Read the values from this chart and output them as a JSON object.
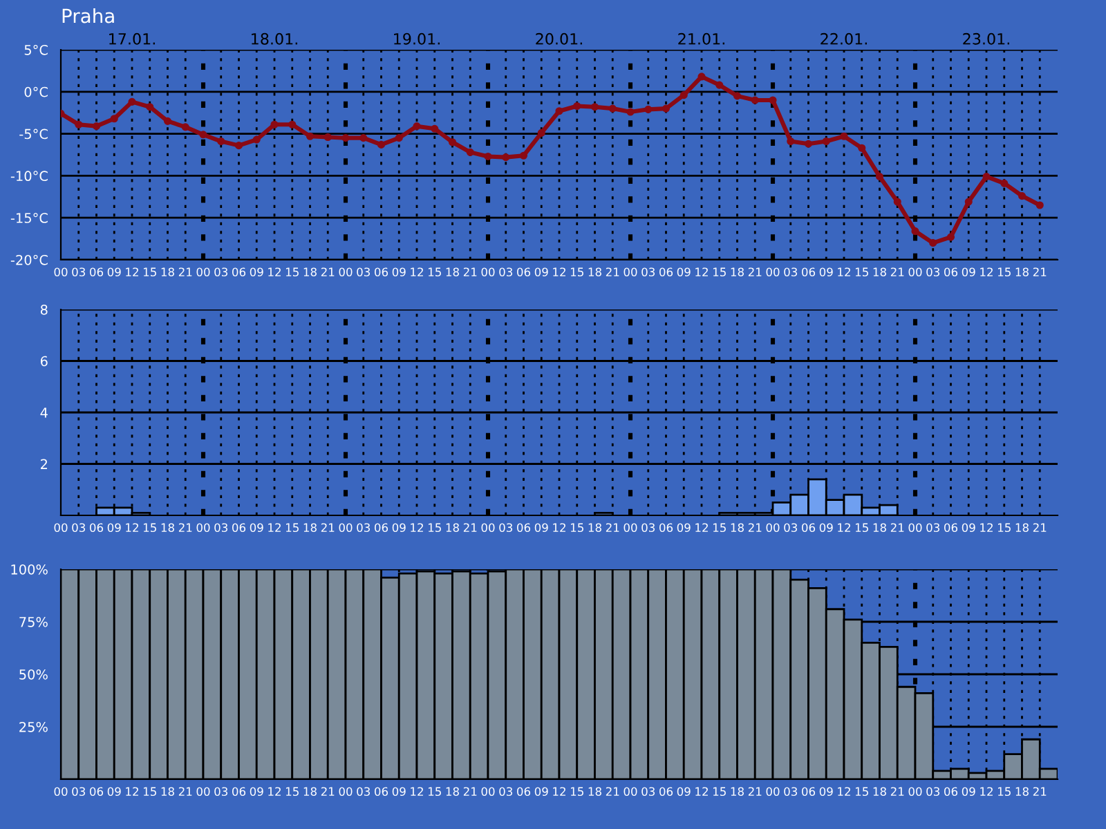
{
  "chart_data": [
    {
      "type": "line",
      "title": "Praha",
      "annotations": [
        "17.01.",
        "18.01.",
        "19.01.",
        "20.01.",
        "21.01.",
        "22.01.",
        "23.01."
      ],
      "categories": [
        "00",
        "03",
        "06",
        "09",
        "12",
        "15",
        "18",
        "21",
        "00",
        "03",
        "06",
        "09",
        "12",
        "15",
        "18",
        "21",
        "00",
        "03",
        "06",
        "09",
        "12",
        "15",
        "18",
        "21",
        "00",
        "03",
        "06",
        "09",
        "12",
        "15",
        "18",
        "21",
        "00",
        "03",
        "06",
        "09",
        "12",
        "15",
        "18",
        "21",
        "00",
        "03",
        "06",
        "09",
        "12",
        "15",
        "18",
        "21",
        "00",
        "03",
        "06",
        "09",
        "12",
        "15",
        "18",
        "21"
      ],
      "series": [
        {
          "color": "#8b0a14",
          "values": [
            -2.6,
            -3.9,
            -4.1,
            -3.2,
            -1.2,
            -1.8,
            -3.5,
            -4.2,
            -5.1,
            -5.9,
            -6.4,
            -5.7,
            -3.9,
            -3.9,
            -5.3,
            -5.4,
            -5.5,
            -5.5,
            -6.3,
            -5.5,
            -4.1,
            -4.4,
            -6.0,
            -7.2,
            -7.7,
            -7.8,
            -7.6,
            -4.9,
            -2.3,
            -1.7,
            -1.8,
            -2.0,
            -2.4,
            -2.1,
            -2.0,
            -0.4,
            1.8,
            0.8,
            -0.5,
            -1.0,
            -1.0,
            -5.9,
            -6.2,
            -5.9,
            -5.3,
            -6.7,
            -10.1,
            -13.1,
            -16.6,
            -18.0,
            -17.3,
            -13.1,
            -10.1,
            -10.9,
            -12.4,
            -13.5
          ]
        }
      ],
      "ylim": [
        -20,
        5
      ],
      "yticks": [
        {
          "value": 5,
          "label": "5°C"
        },
        {
          "value": 0,
          "label": "0°C"
        },
        {
          "value": -5,
          "label": "-5°C"
        },
        {
          "value": -10,
          "label": "-10°C"
        },
        {
          "value": -15,
          "label": "-15°C"
        },
        {
          "value": -20,
          "label": "-20°C"
        }
      ],
      "grid": true,
      "marker": "circle",
      "line_style": "solid"
    },
    {
      "type": "bar",
      "categories": [
        "00",
        "03",
        "06",
        "09",
        "12",
        "15",
        "18",
        "21",
        "00",
        "03",
        "06",
        "09",
        "12",
        "15",
        "18",
        "21",
        "00",
        "03",
        "06",
        "09",
        "12",
        "15",
        "18",
        "21",
        "00",
        "03",
        "06",
        "09",
        "12",
        "15",
        "18",
        "21",
        "00",
        "03",
        "06",
        "09",
        "12",
        "15",
        "18",
        "21",
        "00",
        "03",
        "06",
        "09",
        "12",
        "15",
        "18",
        "21",
        "00",
        "03",
        "06",
        "09",
        "12",
        "15",
        "18",
        "21"
      ],
      "values": [
        0,
        0,
        0.3,
        0.3,
        0.1,
        0,
        0,
        0,
        0,
        0,
        0,
        0,
        0,
        0,
        0,
        0,
        0,
        0,
        0,
        0,
        0,
        0,
        0,
        0,
        0,
        0,
        0,
        0,
        0,
        0,
        0.1,
        0,
        0,
        0,
        0,
        0,
        0,
        0.1,
        0.1,
        0.1,
        0.5,
        0.8,
        1.4,
        0.6,
        0.8,
        0.3,
        0.4,
        0,
        0,
        0,
        0,
        0,
        0,
        0,
        0,
        0
      ],
      "color": "#6f9ff0",
      "ylim": [
        0,
        8
      ],
      "yticks": [
        2,
        4,
        6,
        8
      ],
      "grid": true
    },
    {
      "type": "bar",
      "categories": [
        "00",
        "03",
        "06",
        "09",
        "12",
        "15",
        "18",
        "21",
        "00",
        "03",
        "06",
        "09",
        "12",
        "15",
        "18",
        "21",
        "00",
        "03",
        "06",
        "09",
        "12",
        "15",
        "18",
        "21",
        "00",
        "03",
        "06",
        "09",
        "12",
        "15",
        "18",
        "21",
        "00",
        "03",
        "06",
        "09",
        "12",
        "15",
        "18",
        "21",
        "00",
        "03",
        "06",
        "09",
        "12",
        "15",
        "18",
        "21",
        "00",
        "03",
        "06",
        "09",
        "12",
        "15",
        "18",
        "21"
      ],
      "values": [
        100,
        100,
        100,
        100,
        100,
        100,
        100,
        100,
        100,
        100,
        100,
        100,
        100,
        100,
        100,
        100,
        100,
        100,
        96,
        98,
        99,
        98,
        99,
        98,
        99,
        100,
        100,
        100,
        100,
        100,
        100,
        100,
        100,
        100,
        100,
        100,
        100,
        100,
        100,
        100,
        100,
        95,
        91,
        81,
        76,
        65,
        63,
        44,
        41,
        4,
        5,
        3,
        4,
        12,
        19,
        5
      ],
      "color": "#7a8a99",
      "ylim": [
        0,
        100
      ],
      "yticks": [
        {
          "value": 25,
          "label": "25%"
        },
        {
          "value": 50,
          "label": "50%"
        },
        {
          "value": 75,
          "label": "75%"
        },
        {
          "value": 100,
          "label": "100%"
        }
      ],
      "grid": true
    }
  ]
}
